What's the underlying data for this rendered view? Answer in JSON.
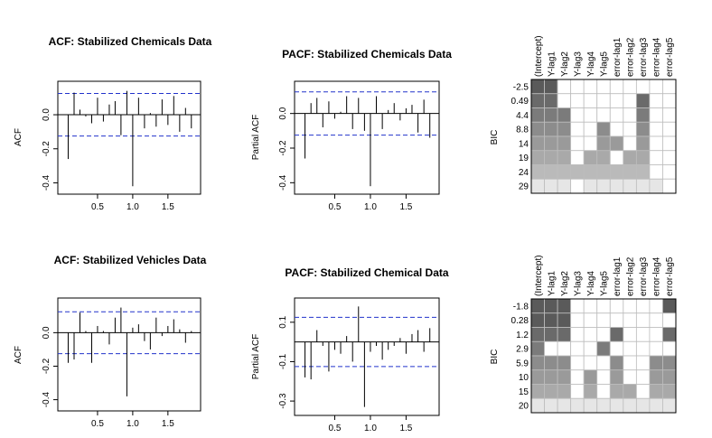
{
  "chart_data": [
    {
      "id": "acf_chem",
      "type": "bar",
      "title": "ACF: Stabilized Chemicals Data",
      "ylabel": "ACF",
      "xticks": [
        0.5,
        1.0,
        1.5
      ],
      "xtick_labels": [
        "0.5",
        "1.0",
        "1.5"
      ],
      "yticks": [
        -0.4,
        -0.2,
        0.0
      ],
      "ytick_labels": [
        "-0.4",
        "-0.2",
        "0.0"
      ],
      "xlim": [
        0.0,
        1.9
      ],
      "ylim": [
        -0.44,
        0.17
      ],
      "ci": 0.125,
      "lags": [
        0.083,
        0.167,
        0.25,
        0.333,
        0.417,
        0.5,
        0.583,
        0.667,
        0.75,
        0.833,
        0.917,
        1.0,
        1.083,
        1.167,
        1.25,
        1.333,
        1.417,
        1.5,
        1.583,
        1.667,
        1.75,
        1.833
      ],
      "values": [
        -0.26,
        0.13,
        0.03,
        -0.01,
        -0.05,
        0.1,
        -0.04,
        0.06,
        0.08,
        -0.12,
        0.14,
        -0.42,
        0.1,
        -0.08,
        0.01,
        -0.07,
        0.09,
        -0.06,
        0.11,
        -0.1,
        0.04,
        -0.08
      ]
    },
    {
      "id": "pacf_chem",
      "type": "bar",
      "title": "PACF: Stabilized Chemicals Data",
      "ylabel": "Partial ACF",
      "xticks": [
        0.5,
        1.0,
        1.5
      ],
      "xtick_labels": [
        "0.5",
        "1.0",
        "1.5"
      ],
      "yticks": [
        -0.4,
        -0.2,
        0.0
      ],
      "ytick_labels": [
        "-0.4",
        "-0.2",
        "0.0"
      ],
      "xlim": [
        0.0,
        1.9
      ],
      "ylim": [
        -0.44,
        0.16
      ],
      "ci": 0.125,
      "lags": [
        0.083,
        0.167,
        0.25,
        0.333,
        0.417,
        0.5,
        0.583,
        0.667,
        0.75,
        0.833,
        0.917,
        1.0,
        1.083,
        1.167,
        1.25,
        1.333,
        1.417,
        1.5,
        1.583,
        1.667,
        1.75,
        1.833
      ],
      "values": [
        -0.26,
        0.06,
        0.09,
        -0.08,
        0.07,
        -0.03,
        0.01,
        0.1,
        -0.09,
        0.09,
        -0.1,
        -0.42,
        0.1,
        -0.09,
        0.02,
        0.06,
        -0.04,
        0.03,
        0.05,
        -0.11,
        0.08,
        -0.14
      ]
    },
    {
      "id": "bic_chem",
      "type": "heatmap",
      "ylabel": "BIC",
      "columns": [
        "(Intercept)",
        "Y-lag1",
        "Y-lag2",
        "Y-lag3",
        "Y-lag4",
        "Y-lag5",
        "error-lag1",
        "error-lag2",
        "error-lag3",
        "error-lag4",
        "error-lag5"
      ],
      "rows": [
        "-2.5",
        "0.49",
        "4.4",
        "8.8",
        "14",
        "19",
        "24",
        "29"
      ],
      "cells": [
        [
          1,
          1,
          0,
          0,
          0,
          0,
          0,
          0,
          0,
          0,
          0
        ],
        [
          1,
          1,
          0,
          0,
          0,
          0,
          0,
          0,
          1,
          0,
          0
        ],
        [
          1,
          1,
          1,
          0,
          0,
          0,
          0,
          0,
          1,
          0,
          0
        ],
        [
          1,
          1,
          1,
          0,
          0,
          1,
          0,
          0,
          1,
          0,
          0
        ],
        [
          1,
          1,
          1,
          0,
          0,
          1,
          1,
          0,
          1,
          0,
          0
        ],
        [
          1,
          1,
          1,
          0,
          1,
          1,
          0,
          1,
          1,
          0,
          0
        ],
        [
          1,
          1,
          1,
          1,
          1,
          1,
          1,
          1,
          1,
          0,
          0
        ],
        [
          1,
          1,
          1,
          0,
          1,
          1,
          1,
          1,
          1,
          1,
          0
        ]
      ],
      "row_colors": [
        "#5a5a5a",
        "#6a6a6a",
        "#7b7b7b",
        "#8c8c8c",
        "#9a9a9a",
        "#a9a9a9",
        "#bababa",
        "#e6e6e6"
      ]
    },
    {
      "id": "acf_veh",
      "type": "bar",
      "title": "ACF: Stabilized Vehicles Data",
      "ylabel": "ACF",
      "xticks": [
        0.5,
        1.0,
        1.5
      ],
      "xtick_labels": [
        "0.5",
        "1.0",
        "1.5"
      ],
      "yticks": [
        -0.4,
        -0.2,
        0.0
      ],
      "ytick_labels": [
        "-0.4",
        "-0.2",
        "0.0"
      ],
      "xlim": [
        0.0,
        1.9
      ],
      "ylim": [
        -0.44,
        0.18
      ],
      "ci": 0.125,
      "lags": [
        0.083,
        0.167,
        0.25,
        0.333,
        0.417,
        0.5,
        0.583,
        0.667,
        0.75,
        0.833,
        0.917,
        1.0,
        1.083,
        1.167,
        1.25,
        1.333,
        1.417,
        1.5,
        1.583,
        1.667,
        1.75,
        1.833
      ],
      "values": [
        -0.18,
        -0.16,
        0.12,
        0.01,
        -0.18,
        0.04,
        0.01,
        -0.07,
        0.09,
        0.15,
        -0.38,
        0.03,
        0.05,
        -0.05,
        -0.1,
        0.09,
        -0.02,
        0.04,
        0.08,
        0.02,
        -0.06,
        0.01
      ]
    },
    {
      "id": "pacf_veh",
      "type": "bar",
      "title": "PACF: Stabilized Chemical Data",
      "ylabel": "Partial ACF",
      "xticks": [
        0.5,
        1.0,
        1.5
      ],
      "xtick_labels": [
        "0.5",
        "1.0",
        "1.5"
      ],
      "yticks": [
        -0.3,
        -0.1,
        0.1
      ],
      "ytick_labels": [
        "-0.3",
        "-0.1",
        "0.1"
      ],
      "xlim": [
        0.0,
        1.9
      ],
      "ylim": [
        -0.35,
        0.2
      ],
      "ci": 0.125,
      "lags": [
        0.083,
        0.167,
        0.25,
        0.333,
        0.417,
        0.5,
        0.583,
        0.667,
        0.75,
        0.833,
        0.917,
        1.0,
        1.083,
        1.167,
        1.25,
        1.333,
        1.417,
        1.5,
        1.583,
        1.667,
        1.75,
        1.833
      ],
      "values": [
        -0.18,
        -0.19,
        0.06,
        -0.02,
        -0.15,
        -0.04,
        -0.06,
        0.03,
        -0.1,
        0.18,
        -0.33,
        -0.05,
        -0.02,
        -0.09,
        -0.04,
        -0.02,
        0.02,
        -0.06,
        0.04,
        0.06,
        -0.05,
        0.07
      ]
    },
    {
      "id": "bic_veh",
      "type": "heatmap",
      "ylabel": "BIC",
      "columns": [
        "(Intercept)",
        "Y-lag1",
        "Y-lag2",
        "Y-lag3",
        "Y-lag4",
        "Y-lag5",
        "error-lag1",
        "error-lag2",
        "error-lag3",
        "error-lag4",
        "error-lag5"
      ],
      "rows": [
        "-1.8",
        "0.28",
        "1.2",
        "2.9",
        "5.9",
        "10",
        "15",
        "20"
      ],
      "cells": [
        [
          1,
          1,
          1,
          0,
          0,
          0,
          0,
          0,
          0,
          0,
          1
        ],
        [
          1,
          1,
          1,
          0,
          0,
          0,
          0,
          0,
          0,
          0,
          0
        ],
        [
          1,
          1,
          1,
          0,
          0,
          0,
          1,
          0,
          0,
          0,
          1
        ],
        [
          1,
          0,
          0,
          0,
          0,
          1,
          0,
          0,
          0,
          0,
          0
        ],
        [
          1,
          1,
          1,
          0,
          0,
          0,
          1,
          0,
          0,
          1,
          1
        ],
        [
          1,
          1,
          1,
          0,
          1,
          0,
          1,
          0,
          0,
          1,
          1
        ],
        [
          1,
          1,
          1,
          0,
          1,
          0,
          1,
          1,
          0,
          1,
          1
        ],
        [
          1,
          1,
          1,
          1,
          1,
          1,
          1,
          1,
          1,
          1,
          1
        ]
      ],
      "row_colors": [
        "#5a5a5a",
        "#5a5a5a",
        "#6a6a6a",
        "#7b7b7b",
        "#8c8c8c",
        "#9a9a9a",
        "#a9a9a9",
        "#e6e6e6"
      ]
    }
  ]
}
